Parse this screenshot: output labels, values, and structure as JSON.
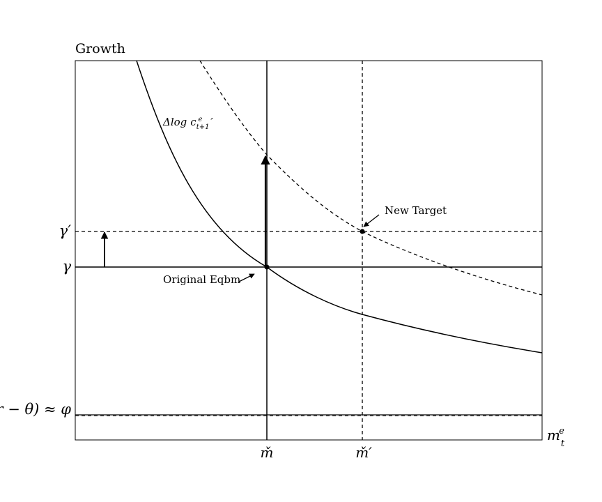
{
  "chart_data": {
    "type": "diagram",
    "y_axis_label": "Growth",
    "x_axis_label": "m",
    "x_axis_label_sub": "t",
    "x_axis_label_sup": "e",
    "y_levels": {
      "gamma_prime": "γ′",
      "gamma": "γ",
      "phi": "(r − θ) ≈ φ"
    },
    "x_levels": {
      "m_check": "m̌",
      "m_check_prime": "m̌′"
    },
    "curve_label": {
      "delta": "Δ",
      "log": "log",
      "c": "c",
      "sub": "t+1",
      "sup": "e",
      "prime": "′"
    },
    "annotations": {
      "new_target": "New Target",
      "original_eqbm": "Original Eqbm"
    }
  }
}
